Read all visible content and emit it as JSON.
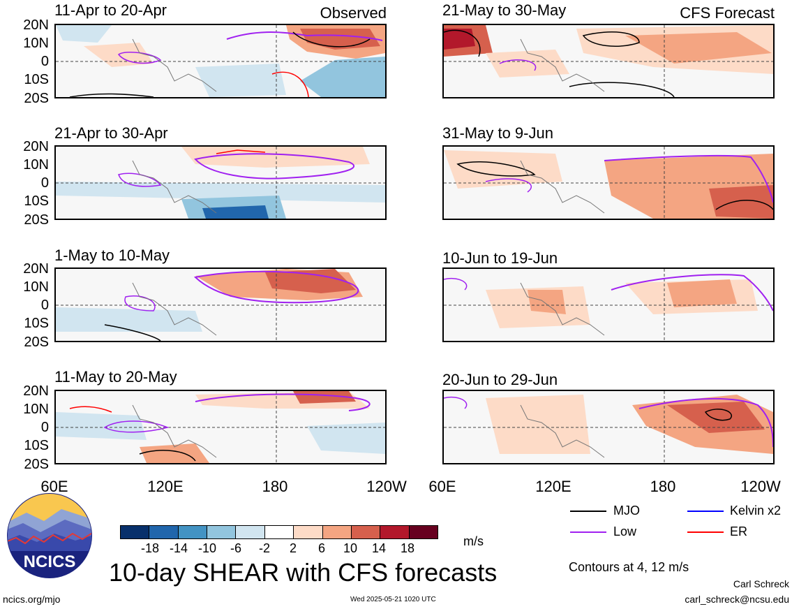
{
  "header": {
    "observed_label": "Observed",
    "forecast_label": "CFS Forecast"
  },
  "panels_left": [
    {
      "title": "11-Apr to 20-Apr"
    },
    {
      "title": "21-Apr to 30-Apr"
    },
    {
      "title": "1-May to 10-May"
    },
    {
      "title": "11-May to 20-May"
    }
  ],
  "panels_right": [
    {
      "title": "21-May to 30-May"
    },
    {
      "title": "31-May to 9-Jun"
    },
    {
      "title": "10-Jun to 19-Jun"
    },
    {
      "title": "20-Jun to 29-Jun"
    }
  ],
  "axes": {
    "lat_labels": [
      "20N",
      "10N",
      "0",
      "10S",
      "20S"
    ],
    "lon_labels": [
      "60E",
      "120E",
      "180",
      "120W"
    ]
  },
  "colorbar": {
    "ticks": [
      "-18",
      "-14",
      "-10",
      "-6",
      "-2",
      "2",
      "6",
      "10",
      "14",
      "18"
    ],
    "colors": [
      "#08306b",
      "#2166ac",
      "#4393c3",
      "#92c5de",
      "#d1e5f0",
      "#ffffff",
      "#fddbc7",
      "#f4a582",
      "#d6604d",
      "#b2182b",
      "#67001f"
    ],
    "units": "m/s"
  },
  "legend": {
    "items": [
      {
        "label": "MJO",
        "color": "#000000"
      },
      {
        "label": "Kelvin x2",
        "color": "#0000ff"
      },
      {
        "label": "Low",
        "color": "#a020f0"
      },
      {
        "label": "ER",
        "color": "#ff0000"
      }
    ],
    "contours_note": "Contours at 4, 12 m/s"
  },
  "footer": {
    "main_title": "10-day SHEAR with CFS forecasts",
    "logo_text": "NCICS",
    "url": "ncics.org/mjo",
    "timestamp": "Wed 2025-05-21 1020 UTC",
    "author": "Carl Schreck",
    "email": "carl_schreck@ncsu.edu"
  }
}
